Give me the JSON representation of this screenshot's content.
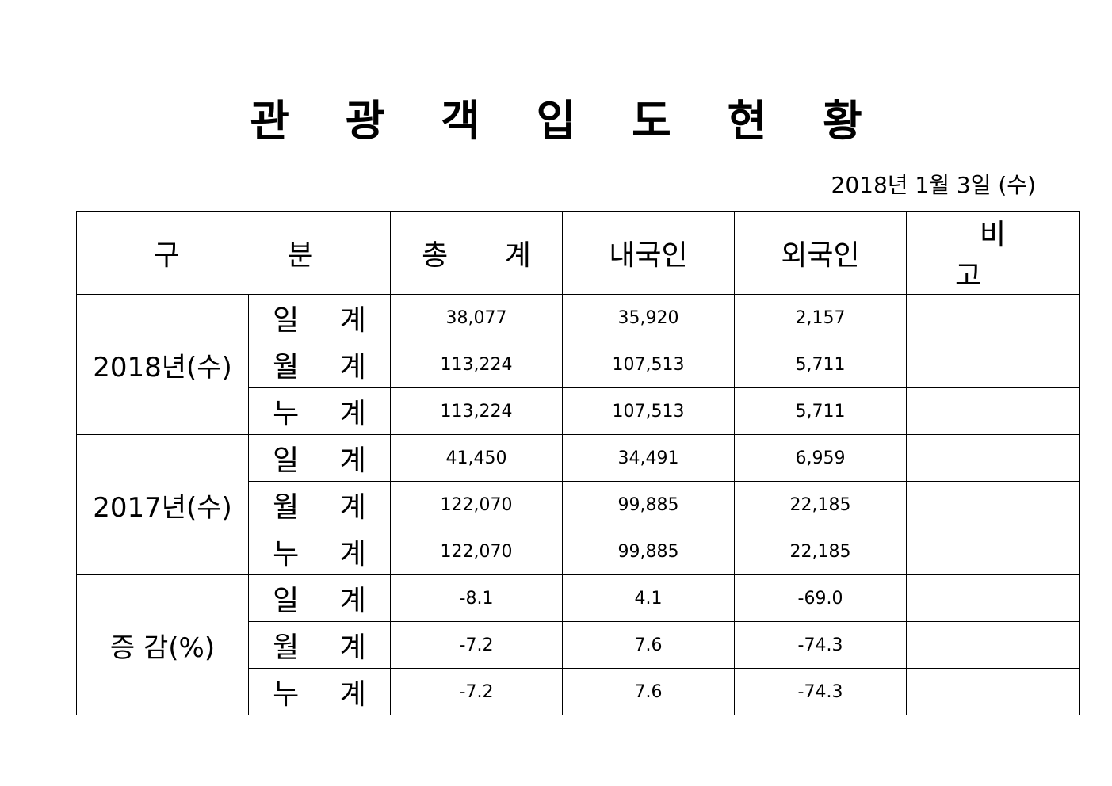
{
  "title": "관 광 객 입 도 현 황",
  "date": "2018년 1월 3일 (수)",
  "header": {
    "category": "구 분",
    "total": "총 계",
    "domestic": "내국인",
    "foreign": "외국인",
    "remarks": "비 고"
  },
  "groups": [
    {
      "label": "2018년(수)",
      "rows": [
        {
          "sub": "일 계",
          "total": "38,077",
          "domestic": "35,920",
          "foreign": "2,157",
          "remarks": ""
        },
        {
          "sub": "월 계",
          "total": "113,224",
          "domestic": "107,513",
          "foreign": "5,711",
          "remarks": ""
        },
        {
          "sub": "누 계",
          "total": "113,224",
          "domestic": "107,513",
          "foreign": "5,711",
          "remarks": ""
        }
      ]
    },
    {
      "label": "2017년(수)",
      "rows": [
        {
          "sub": "일 계",
          "total": "41,450",
          "domestic": "34,491",
          "foreign": "6,959",
          "remarks": ""
        },
        {
          "sub": "월 계",
          "total": "122,070",
          "domestic": "99,885",
          "foreign": "22,185",
          "remarks": ""
        },
        {
          "sub": "누 계",
          "total": "122,070",
          "domestic": "99,885",
          "foreign": "22,185",
          "remarks": ""
        }
      ]
    },
    {
      "label": "증 감(%)",
      "rows": [
        {
          "sub": "일 계",
          "total": "-8.1",
          "domestic": "4.1",
          "foreign": "-69.0",
          "remarks": ""
        },
        {
          "sub": "월 계",
          "total": "-7.2",
          "domestic": "7.6",
          "foreign": "-74.3",
          "remarks": ""
        },
        {
          "sub": "누 계",
          "total": "-7.2",
          "domestic": "7.6",
          "foreign": "-74.3",
          "remarks": ""
        }
      ]
    }
  ]
}
